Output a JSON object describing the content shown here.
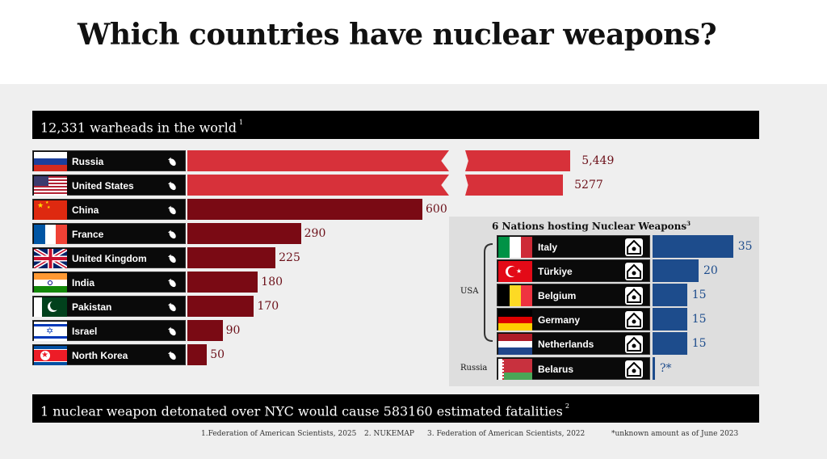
{
  "title": "Which countries have nuclear weapons?",
  "world_bar": {
    "text": "12,331 warheads in the world",
    "note": "1"
  },
  "chart_data": {
    "type": "bar",
    "title": "12,331 warheads in the world",
    "orientation": "horizontal",
    "categories": [
      "Russia",
      "United States",
      "China",
      "France",
      "United Kingdom",
      "India",
      "Pakistan",
      "Israel",
      "North Korea"
    ],
    "values": [
      5449,
      5277,
      600,
      290,
      225,
      180,
      170,
      90,
      50
    ],
    "value_labels": [
      "5,449",
      "5277",
      "600",
      "290",
      "225",
      "180",
      "170",
      "90",
      "50"
    ],
    "broken_axis": true,
    "colors": {
      "large": "#d7313a",
      "small": "#7a0a14"
    }
  },
  "hosting": {
    "title": "6 Nations hosting Nuclear Weapons",
    "note": "3",
    "groups": [
      {
        "label": "USA"
      },
      {
        "label": "Russia"
      }
    ],
    "countries": [
      "Italy",
      "Türkiye",
      "Belgium",
      "Germany",
      "Netherlands",
      "Belarus"
    ],
    "values": [
      35,
      20,
      15,
      15,
      15,
      null
    ],
    "value_labels": [
      "35",
      "20",
      "15",
      "15",
      "15",
      "?*"
    ],
    "color": "#1d4c8c"
  },
  "fatality_bar": {
    "text": "1 nuclear weapon detonated over NYC would cause 583160 estimated fatalities",
    "note": "2"
  },
  "footnotes": [
    "1.Federation of American Scientists, 2025",
    "2. NUKEMAP",
    "3. Federation of American Scientists, 2022",
    "*unknown amount as of June 2023"
  ]
}
